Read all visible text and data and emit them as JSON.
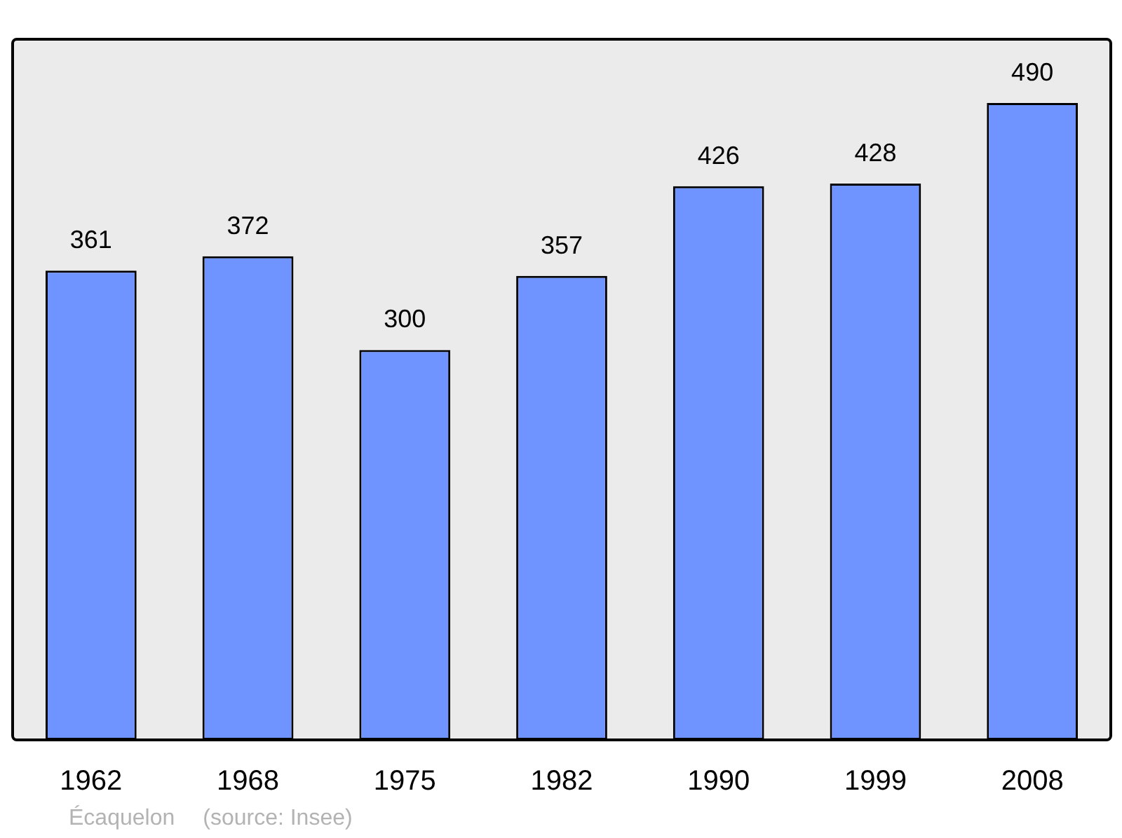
{
  "chart_data": {
    "type": "bar",
    "categories": [
      "1962",
      "1968",
      "1975",
      "1982",
      "1990",
      "1999",
      "2008"
    ],
    "values": [
      361,
      372,
      300,
      357,
      426,
      428,
      490
    ],
    "color": "#7094ff",
    "ylim": [
      0,
      539
    ],
    "data_labels": true,
    "grid": false,
    "legend": false,
    "tick_labels": "x",
    "annotations": [
      "Écaquelon",
      "(source: Insee)"
    ]
  }
}
